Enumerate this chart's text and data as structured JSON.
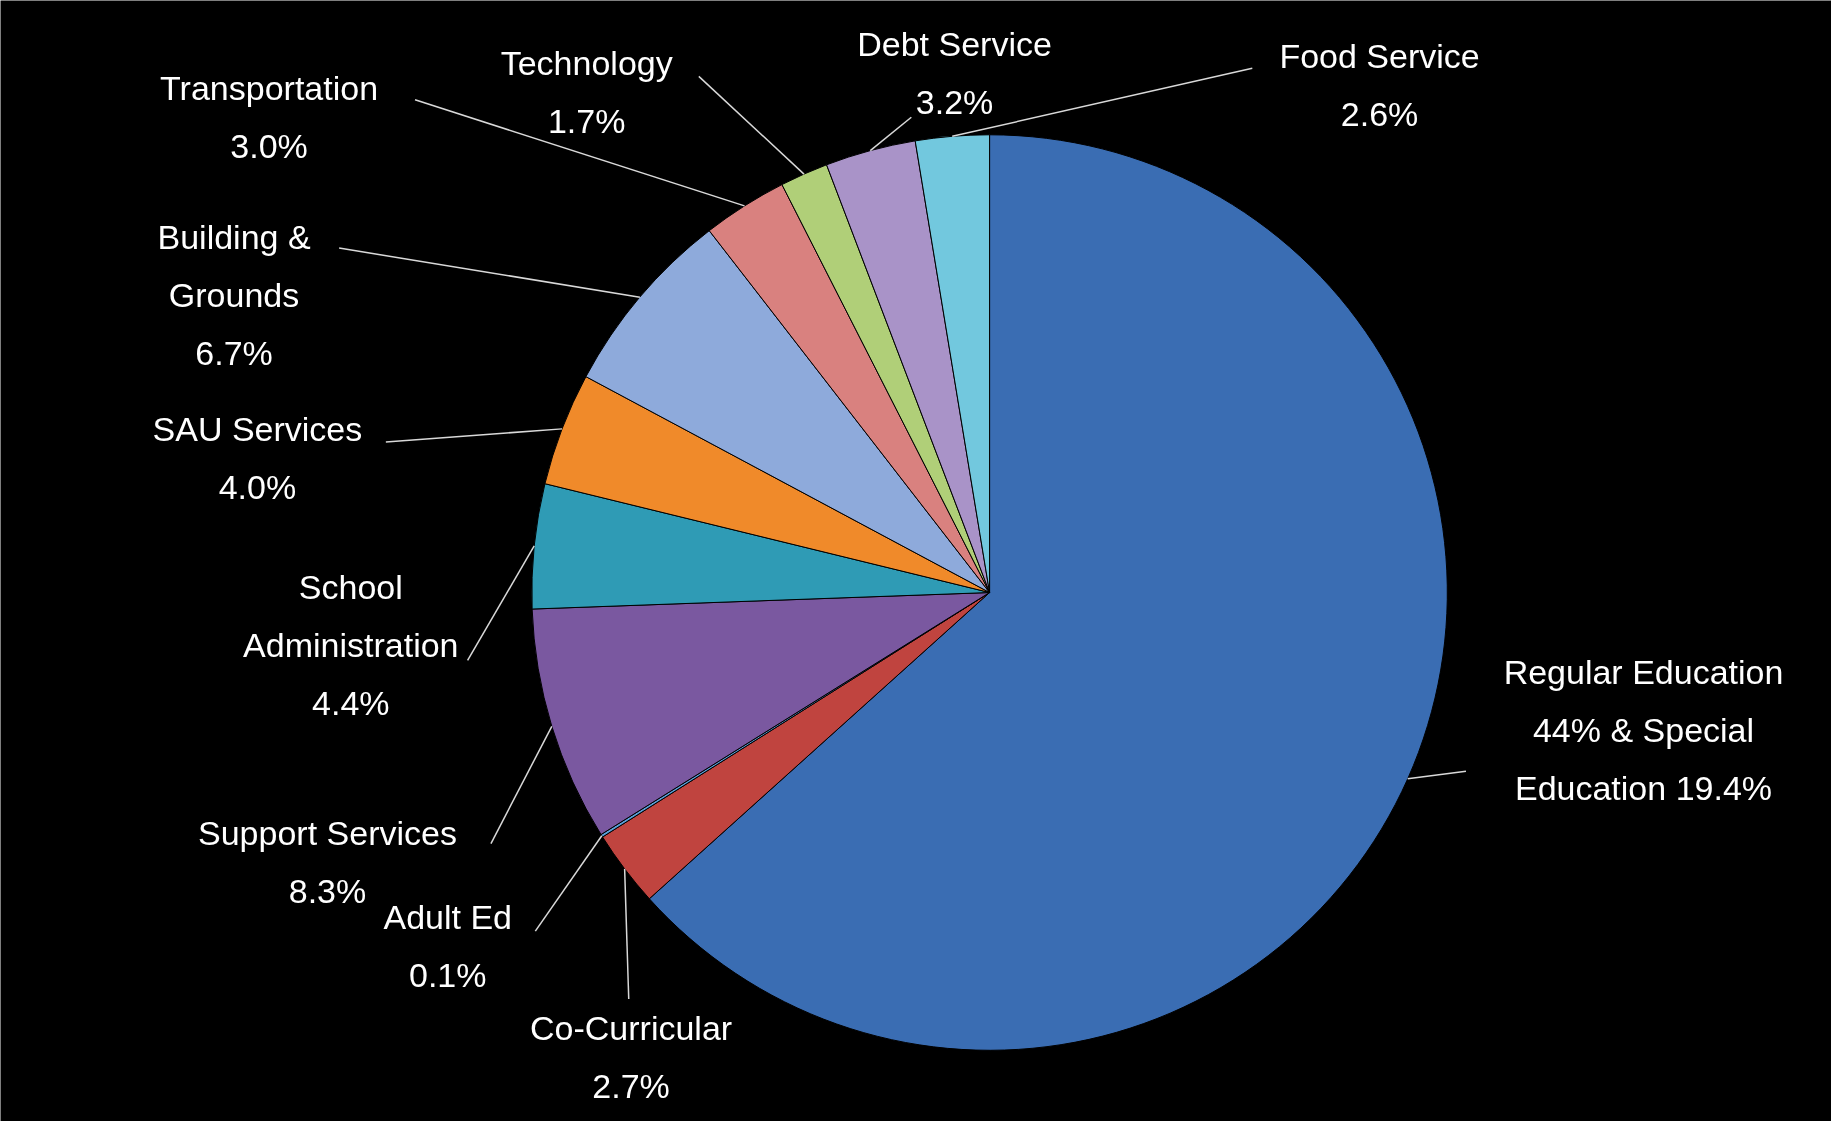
{
  "chart_data": {
    "type": "pie",
    "categories": [
      "Regular Education 44% & Special Education 19.4%",
      "Co-Curricular",
      "Adult Ed",
      "Support Services",
      "School Administration",
      "SAU Services",
      "Building & Grounds",
      "Transportation",
      "Technology",
      "Debt Service",
      "Food Service"
    ],
    "values": [
      63.4,
      2.7,
      0.1,
      8.3,
      4.4,
      4.0,
      6.7,
      3.0,
      1.7,
      3.2,
      2.6
    ],
    "value_labels": [
      null,
      "2.7%",
      "0.1%",
      "8.3%",
      "4.4%",
      "4.0%",
      "6.7%",
      "3.0%",
      "1.7%",
      "3.2%",
      "2.6%"
    ],
    "colors": [
      "#3a6db3",
      "#c0443f",
      "#5aa0d8",
      "#7a58a0",
      "#2f9bb5",
      "#f08a2a",
      "#8eaadb",
      "#d9817f",
      "#b0cf78",
      "#a993c8",
      "#72c8de"
    ]
  }
}
